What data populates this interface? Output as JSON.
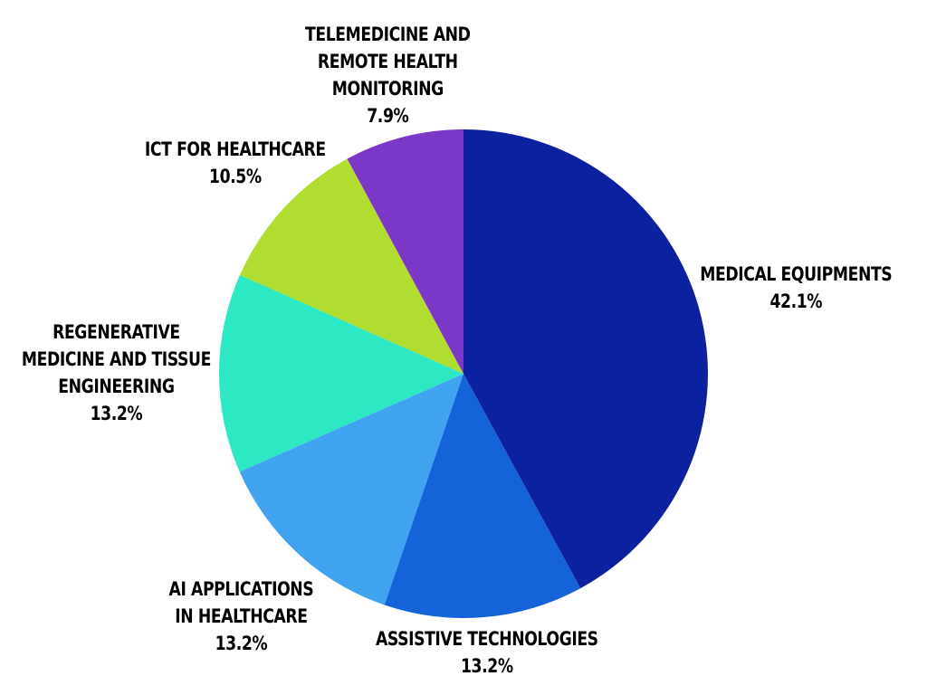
{
  "chart_data": {
    "type": "pie",
    "start_angle_deg": 0,
    "direction": "clockwise",
    "slices": [
      {
        "label": "MEDICAL EQUIPMENTS",
        "lines": [
          "MEDICAL EQUIPMENTS"
        ],
        "value": 42.1,
        "value_label": "42.1%",
        "color": "#0b21a0"
      },
      {
        "label": "ASSISTIVE TECHNOLOGIES",
        "lines": [
          "ASSISTIVE TECHNOLOGIES"
        ],
        "value": 13.2,
        "value_label": "13.2%",
        "color": "#1463d8"
      },
      {
        "label": "AI APPLICATIONS IN HEALTHCARE",
        "lines": [
          "AI APPLICATIONS",
          "IN HEALTHCARE"
        ],
        "value": 13.2,
        "value_label": "13.2%",
        "color": "#40a3ef"
      },
      {
        "label": "REGENERATIVE MEDICINE AND TISSUE ENGINEERING",
        "lines": [
          "REGENERATIVE",
          "MEDICINE AND TISSUE",
          "ENGINEERING"
        ],
        "value": 13.2,
        "value_label": "13.2%",
        "color": "#2ce8c3"
      },
      {
        "label": "ICT FOR HEALTHCARE",
        "lines": [
          "ICT FOR HEALTHCARE"
        ],
        "value": 10.5,
        "value_label": "10.5%",
        "color": "#b0dd30"
      },
      {
        "label": "TELEMEDICINE AND REMOTE HEALTH MONITORING",
        "lines": [
          "TELEMEDICINE AND",
          "REMOTE HEALTH",
          "MONITORING"
        ],
        "value": 7.9,
        "value_label": "7.9%",
        "color": "#7b37c8"
      }
    ]
  }
}
